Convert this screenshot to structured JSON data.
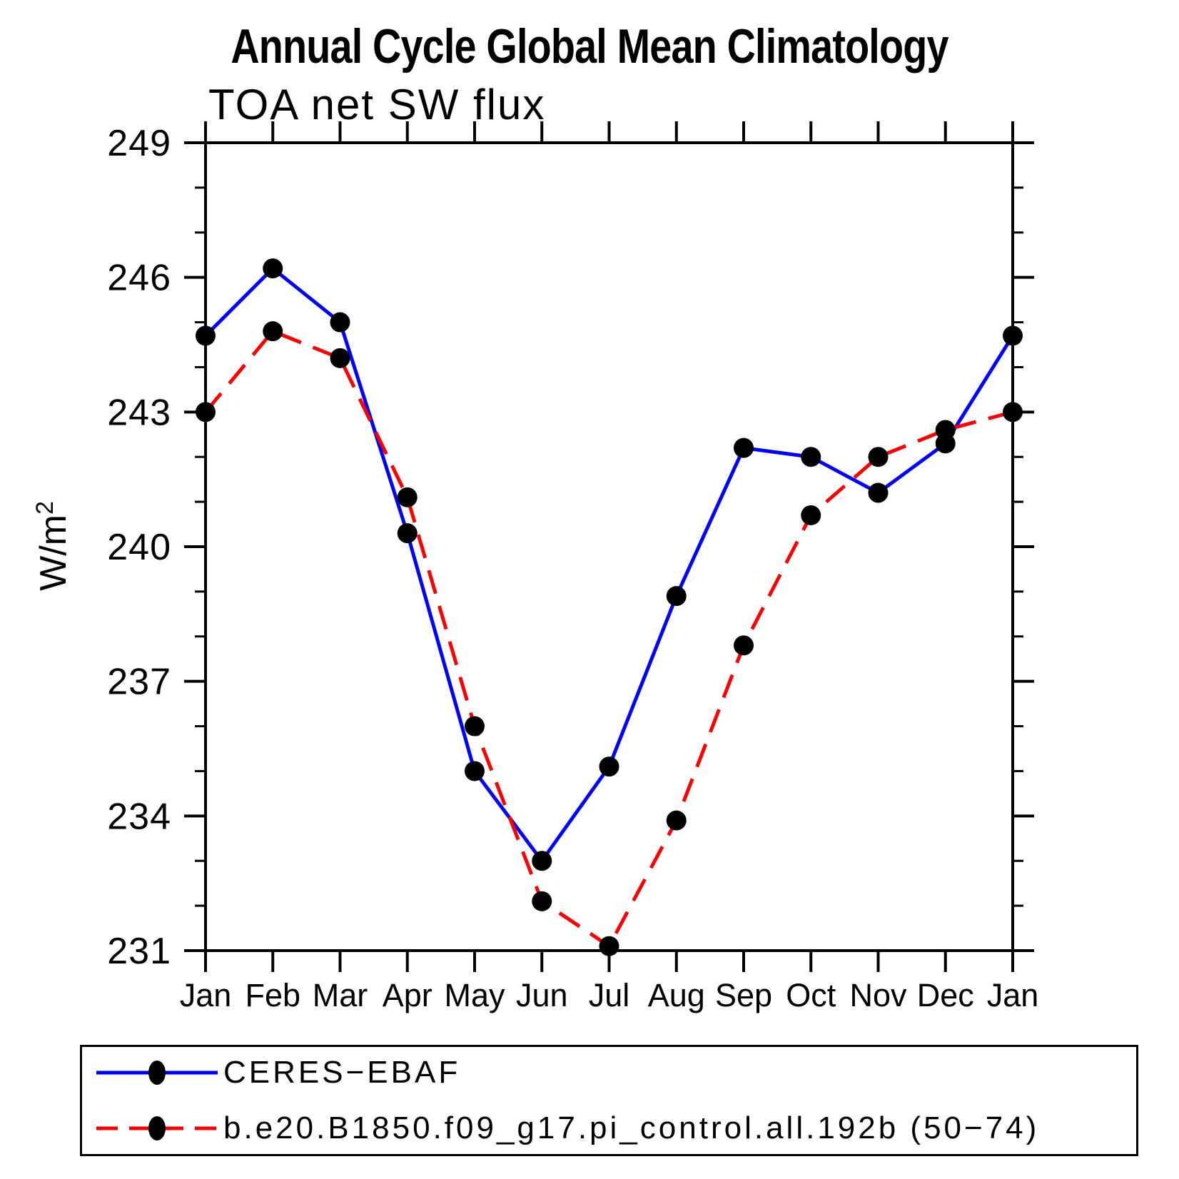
{
  "chart_data": {
    "type": "line",
    "title": "Annual Cycle Global Mean Climatology",
    "subtitle": "TOA net SW flux",
    "ylabel": "W/m²",
    "ylabel_base": "W/m",
    "ylabel_exp": "2",
    "xlabel": "",
    "categories": [
      "Jan",
      "Feb",
      "Mar",
      "Apr",
      "May",
      "Jun",
      "Jul",
      "Aug",
      "Sep",
      "Oct",
      "Nov",
      "Dec",
      "Jan"
    ],
    "ylim": [
      231,
      249
    ],
    "yticks": [
      249,
      246,
      243,
      240,
      237,
      234,
      231
    ],
    "ytick_minor_step": 1,
    "grid": false,
    "legend_position": "bottom",
    "axis_color": "#000000",
    "marker_color": "#000000",
    "series": [
      {
        "id": "ceres-ebaf",
        "name": "CERES−EBAF",
        "style": "solid",
        "color": "#0000ff",
        "values": [
          244.7,
          246.2,
          245.0,
          240.3,
          235.0,
          233.0,
          235.1,
          238.9,
          242.2,
          242.0,
          241.2,
          242.3,
          244.7
        ]
      },
      {
        "id": "pi-control-model",
        "name": "b.e20.B1850.f09_g17.pi_control.all.192b (50−74)",
        "style": "dashed",
        "color": "#ff0000",
        "values": [
          243.0,
          244.8,
          244.2,
          241.1,
          236.0,
          232.1,
          231.1,
          233.9,
          237.8,
          240.7,
          242.0,
          242.6,
          243.0
        ]
      }
    ]
  }
}
